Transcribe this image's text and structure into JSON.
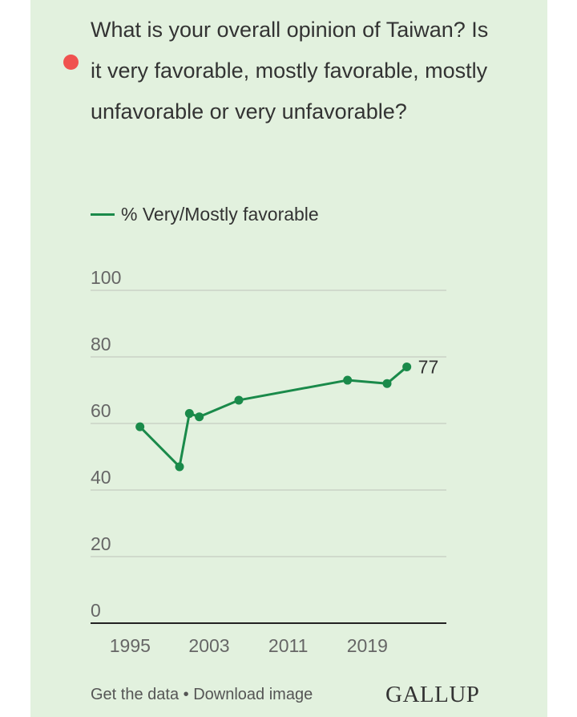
{
  "question": "What is your overall opinion of Taiwan? Is it very favorable, mostly favorable, mostly unfavorable or very unfavorable?",
  "footer": {
    "get_data": "Get the data",
    "separator": "•",
    "download": "Download image"
  },
  "brand": "GALLUP",
  "colors": {
    "background": "#e2f1de",
    "line": "#1a8a4a",
    "marker": "#f0524f"
  },
  "chart_data": {
    "type": "line",
    "title": "",
    "xlabel": "",
    "ylabel": "",
    "ylim": [
      0,
      100
    ],
    "xlim": [
      1991,
      2027
    ],
    "yticks": [
      0,
      20,
      40,
      60,
      80,
      100
    ],
    "xticks": [
      1995,
      2003,
      2011,
      2019
    ],
    "grid": true,
    "legend": "top-left",
    "series": [
      {
        "name": "% Very/Mostly favorable",
        "points": [
          {
            "x": 1996,
            "y": 59
          },
          {
            "x": 2000,
            "y": 47
          },
          {
            "x": 2001,
            "y": 63
          },
          {
            "x": 2002,
            "y": 62
          },
          {
            "x": 2006,
            "y": 67
          },
          {
            "x": 2017,
            "y": 73
          },
          {
            "x": 2021,
            "y": 72
          },
          {
            "x": 2023,
            "y": 77
          }
        ],
        "end_label": "77"
      }
    ]
  }
}
